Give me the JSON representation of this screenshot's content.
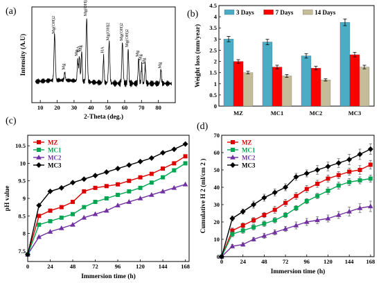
{
  "panels": {
    "a": "(a)",
    "b": "(b)",
    "c": "(c)",
    "d": "(d)"
  },
  "chart_data": [
    {
      "id": "a",
      "type": "line",
      "xlabel": "2-Theta (deg.)",
      "ylabel": "Intensity (A.U)",
      "xlim": [
        5,
        90
      ],
      "xticks": [
        10,
        20,
        30,
        40,
        50,
        60,
        70,
        80
      ],
      "color": "#000000",
      "peaks": [
        {
          "x": 18.5,
          "h": 0.7,
          "label": "Mg(OH)2"
        },
        {
          "x": 32.2,
          "h": 0.32,
          "label": "Mg"
        },
        {
          "x": 33.2,
          "h": 0.38,
          "label": "HA"
        },
        {
          "x": 34.5,
          "h": 0.45,
          "label": "Mg"
        },
        {
          "x": 37.5,
          "h": 0.95,
          "label": "Mg(OH)2"
        },
        {
          "x": 47.5,
          "h": 0.4,
          "label": "HA"
        },
        {
          "x": 50.8,
          "h": 0.62,
          "label": "Mg(OH)2"
        },
        {
          "x": 58.7,
          "h": 0.62,
          "label": "Mg(OH)2"
        },
        {
          "x": 62.1,
          "h": 0.52,
          "label": "Mg(OH)2"
        },
        {
          "x": 68.3,
          "h": 0.38,
          "label": "Mg"
        },
        {
          "x": 70.1,
          "h": 0.28,
          "label": "Mg"
        },
        {
          "x": 72.2,
          "h": 0.3,
          "label": "Mg"
        },
        {
          "x": 81.5,
          "h": 0.22,
          "label": "Mg"
        },
        {
          "x": 24.5,
          "h": 0.12,
          "label": "Mg"
        }
      ]
    },
    {
      "id": "b",
      "type": "bar",
      "ylabel": "Weight loss (mm/year)",
      "categories": [
        "MZ",
        "MC1",
        "MC2",
        "MC3"
      ],
      "ylim": [
        0,
        4.5
      ],
      "yticks": [
        0,
        0.5,
        1,
        1.5,
        2,
        2.5,
        3,
        3.5,
        4,
        4.5
      ],
      "yticklabels": [
        "0",
        "0.5",
        "1",
        "1.5",
        "2",
        "2.5",
        "3",
        "3.5",
        "4",
        "4.5"
      ],
      "series": [
        {
          "name": "3 Days",
          "color": "#4bacc6",
          "values": [
            3.0,
            2.87,
            2.25,
            3.75
          ],
          "errors": [
            0.12,
            0.12,
            0.1,
            0.15
          ]
        },
        {
          "name": "7 Days",
          "color": "#ff0000",
          "values": [
            2.0,
            1.75,
            1.7,
            2.3
          ],
          "errors": [
            0.08,
            0.08,
            0.08,
            0.1
          ]
        },
        {
          "name": "14 Days",
          "color": "#c4bd97",
          "values": [
            1.5,
            1.35,
            1.17,
            1.75
          ],
          "errors": [
            0.06,
            0.06,
            0.05,
            0.08
          ]
        }
      ]
    },
    {
      "id": "c",
      "type": "line",
      "xlabel": "Immersion time (h)",
      "ylabel": "pH value",
      "xlim": [
        0,
        172
      ],
      "xticks": [
        0,
        24,
        48,
        72,
        96,
        120,
        144,
        168
      ],
      "ylim": [
        7.2,
        10.8
      ],
      "yticks": [
        7.5,
        8,
        8.5,
        9,
        9.5,
        10,
        10.5
      ],
      "yticklabels": [
        "7.5",
        "8",
        "8.5",
        "9",
        "9.5",
        "10",
        "10.5"
      ],
      "x": [
        0,
        12,
        24,
        36,
        48,
        60,
        72,
        84,
        96,
        108,
        120,
        132,
        144,
        156,
        168
      ],
      "series": [
        {
          "name": "MZ",
          "color": "#dd0000",
          "marker": "square",
          "values": [
            7.4,
            8.5,
            8.65,
            8.75,
            8.9,
            9.2,
            9.3,
            9.35,
            9.4,
            9.5,
            9.6,
            9.7,
            9.85,
            10.0,
            10.2
          ]
        },
        {
          "name": "MC1",
          "color": "#00a651",
          "marker": "square",
          "values": [
            7.4,
            8.25,
            8.35,
            8.45,
            8.55,
            8.75,
            8.9,
            9.0,
            9.1,
            9.2,
            9.3,
            9.45,
            9.6,
            9.8,
            10.0
          ]
        },
        {
          "name": "MC2",
          "color": "#7030a0",
          "marker": "triangle",
          "values": [
            7.4,
            7.9,
            8.05,
            8.15,
            8.25,
            8.45,
            8.55,
            8.65,
            8.8,
            8.9,
            9.0,
            9.1,
            9.2,
            9.3,
            9.4
          ]
        },
        {
          "name": "MC3",
          "color": "#000000",
          "marker": "diamond",
          "values": [
            7.4,
            8.8,
            9.2,
            9.3,
            9.45,
            9.55,
            9.65,
            9.75,
            9.85,
            9.95,
            10.05,
            10.15,
            10.3,
            10.4,
            10.55
          ]
        }
      ]
    },
    {
      "id": "d",
      "type": "line",
      "xlabel": "Immersion time (h)",
      "ylabel": "Cumulative H 2 (ml/cm 2 )",
      "xlim": [
        0,
        172
      ],
      "xticks": [
        0,
        24,
        48,
        72,
        96,
        120,
        144,
        168
      ],
      "ylim": [
        0,
        70
      ],
      "yticks": [
        0,
        10,
        20,
        30,
        40,
        50,
        60,
        70
      ],
      "x": [
        0,
        12,
        24,
        36,
        48,
        60,
        72,
        84,
        96,
        108,
        120,
        132,
        144,
        156,
        168
      ],
      "series": [
        {
          "name": "MZ",
          "color": "#dd0000",
          "marker": "square",
          "values": [
            0,
            15,
            18,
            21,
            24,
            27,
            31,
            35,
            39,
            42,
            45,
            47,
            49,
            50,
            53
          ],
          "errors": [
            0.5,
            1.5,
            1.5,
            1.5,
            1.5,
            2,
            2,
            2,
            2,
            2,
            2,
            2,
            2,
            2.5,
            2.5
          ]
        },
        {
          "name": "MC1",
          "color": "#00a651",
          "marker": "square",
          "values": [
            0,
            13,
            15,
            17,
            19,
            21,
            24,
            28,
            32,
            35,
            38,
            41,
            43,
            44,
            45
          ],
          "errors": [
            0.5,
            1.5,
            1.5,
            1.5,
            1.5,
            1.5,
            1.5,
            1.5,
            1.5,
            1.5,
            2,
            2,
            2,
            2,
            2
          ]
        },
        {
          "name": "MC2",
          "color": "#7030a0",
          "marker": "triangle",
          "values": [
            0,
            6,
            7,
            10,
            12,
            14,
            16,
            18,
            20,
            21,
            22,
            24,
            26,
            28,
            29
          ],
          "errors": [
            0.5,
            1,
            1,
            1,
            1.5,
            1.5,
            1.5,
            2,
            2,
            2,
            2,
            2,
            2.5,
            2.5,
            3
          ]
        },
        {
          "name": "MC3",
          "color": "#000000",
          "marker": "diamond",
          "values": [
            0,
            22,
            26,
            30,
            34,
            37,
            40,
            46,
            48,
            50,
            52,
            54,
            56,
            59,
            62
          ],
          "errors": [
            0.5,
            1.5,
            1.5,
            2,
            2,
            2,
            2,
            2,
            2,
            2.5,
            2.5,
            2.5,
            3,
            3,
            3
          ]
        }
      ]
    }
  ]
}
